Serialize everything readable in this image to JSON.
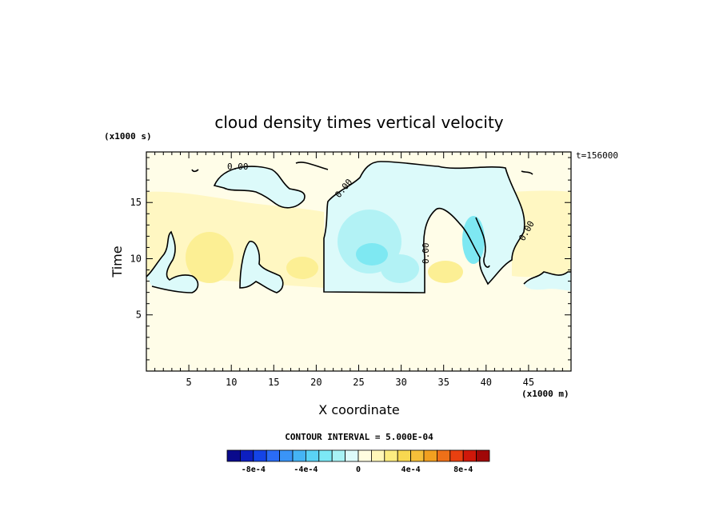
{
  "chart_data": {
    "type": "contour",
    "title": "cloud density times vertical velocity",
    "xlabel": "X coordinate",
    "ylabel": "Time",
    "x_unit_label": "(x1000 m)",
    "y_unit_label": "(x1000 s)",
    "time_label": "t=156000",
    "xlim": [
      0,
      50
    ],
    "ylim": [
      0,
      19.5
    ],
    "x_ticks": [
      5,
      10,
      15,
      20,
      25,
      30,
      35,
      40,
      45
    ],
    "y_ticks": [
      5,
      10,
      15
    ],
    "zero_contour_label": "0.00",
    "contour_interval_label": "CONTOUR INTERVAL = 5.000E-04",
    "colorbar": {
      "colors": [
        "#0a0a8c",
        "#0d1fc0",
        "#1444e6",
        "#2a6cf5",
        "#3a94f7",
        "#45b4f5",
        "#5ad2f5",
        "#7ce8f5",
        "#a8f2f5",
        "#ddfafa",
        "#fffde0",
        "#fff7b8",
        "#fcec80",
        "#f8d850",
        "#f5bf3a",
        "#f2a020",
        "#ee7018",
        "#e84010",
        "#d0180a",
        "#a00808"
      ],
      "tick_labels": [
        "-8e-4",
        "-4e-4",
        "0",
        "4e-4",
        "8e-4"
      ],
      "tick_values": [
        -0.0008,
        -0.0004,
        0,
        0.0004,
        0.0008
      ]
    },
    "fields": {
      "background_color": "#fffde8",
      "weak_positive_color": "#fff7c2",
      "moderate_positive_color": "#fcef94",
      "weak_negative_color": "#dcfafa",
      "moderate_negative_color": "#b2f2f5",
      "strong_negative_color": "#7ee8f2"
    }
  }
}
